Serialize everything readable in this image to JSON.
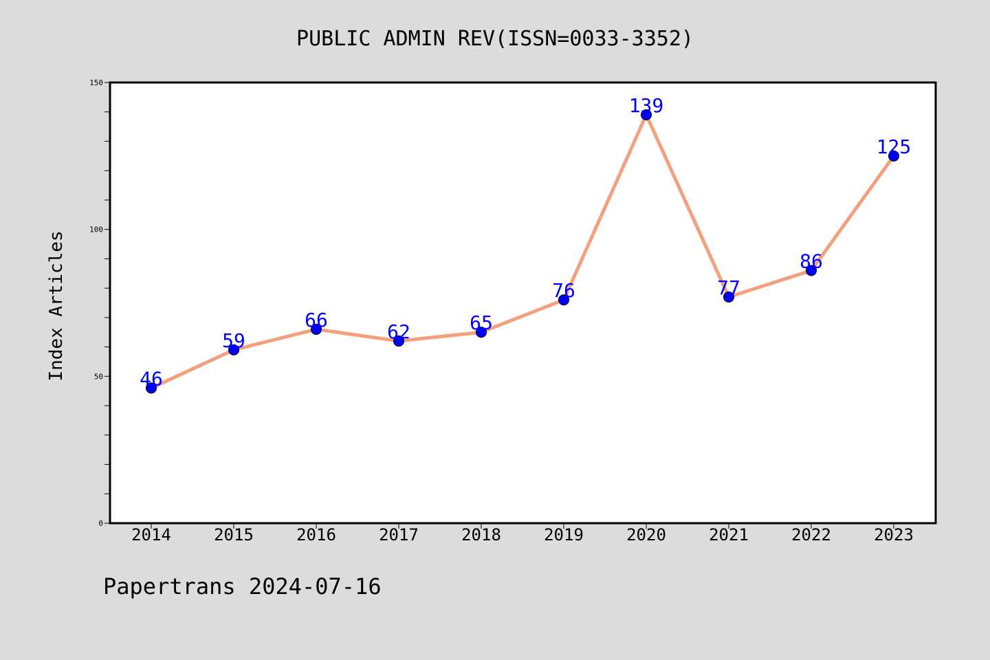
{
  "title": "PUBLIC ADMIN REV(ISSN=0033-3352)",
  "footer": "Papertrans 2024-07-16",
  "colors": {
    "background": "#dcdcdc",
    "plot_background": "#ffffff",
    "line": "#f4a07e",
    "marker": "#0000ff",
    "label": "#0000ff"
  },
  "chart_data": {
    "type": "line",
    "title": "PUBLIC ADMIN REV(ISSN=0033-3352)",
    "xlabel": "",
    "ylabel": "Index Articles",
    "categories": [
      "2014",
      "2015",
      "2016",
      "2017",
      "2018",
      "2019",
      "2020",
      "2021",
      "2022",
      "2023"
    ],
    "values": [
      46,
      59,
      66,
      62,
      65,
      76,
      139,
      77,
      86,
      125
    ],
    "ylim": [
      0,
      150
    ],
    "yticks": [
      "0",
      "50",
      "100",
      "150"
    ],
    "grid": false,
    "legend": "none"
  }
}
